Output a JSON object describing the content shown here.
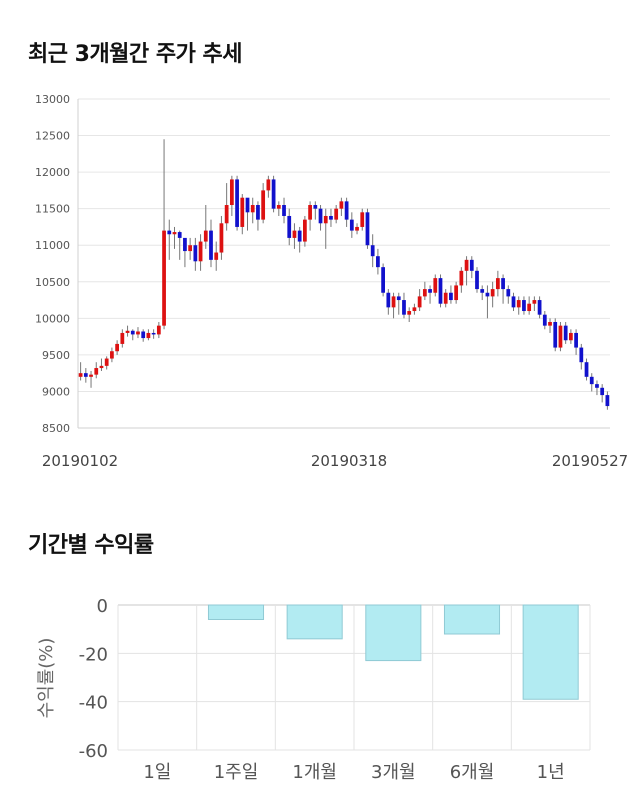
{
  "sections": {
    "price_title": "최근 3개월간 주가 추세",
    "return_title": "기간별 수익률"
  },
  "chart_data": [
    {
      "type": "candlestick",
      "title": "최근 3개월간 주가 추세",
      "ylim": [
        8500,
        13000
      ],
      "yticks": [
        8500,
        9000,
        9500,
        10000,
        10500,
        11000,
        11500,
        12000,
        12500,
        13000
      ],
      "xticks": [
        "20190102",
        "20190318",
        "20190527"
      ],
      "grid": true,
      "colors": {
        "up": "#dd1111",
        "down": "#1111cc",
        "wick": "#777777"
      },
      "candles": [
        [
          9200,
          9250,
          9400,
          9150
        ],
        [
          9250,
          9200,
          9320,
          9120
        ],
        [
          9200,
          9230,
          9280,
          9050
        ],
        [
          9230,
          9320,
          9400,
          9180
        ],
        [
          9320,
          9350,
          9450,
          9280
        ],
        [
          9350,
          9450,
          9480,
          9300
        ],
        [
          9450,
          9550,
          9600,
          9400
        ],
        [
          9550,
          9650,
          9700,
          9500
        ],
        [
          9650,
          9800,
          9850,
          9600
        ],
        [
          9800,
          9830,
          9900,
          9750
        ],
        [
          9830,
          9780,
          9850,
          9700
        ],
        [
          9780,
          9820,
          9880,
          9730
        ],
        [
          9820,
          9730,
          9850,
          9680
        ],
        [
          9730,
          9800,
          9850,
          9700
        ],
        [
          9800,
          9780,
          9850,
          9720
        ],
        [
          9780,
          9900,
          9950,
          9730
        ],
        [
          9900,
          11200,
          12450,
          9850
        ],
        [
          11200,
          11150,
          11350,
          10800
        ],
        [
          11150,
          11180,
          11250,
          10950
        ],
        [
          11180,
          11100,
          11200,
          10800
        ],
        [
          11100,
          10920,
          11050,
          10700
        ],
        [
          10920,
          11000,
          11100,
          10800
        ],
        [
          11000,
          10780,
          11100,
          10650
        ],
        [
          10780,
          11050,
          11150,
          10650
        ],
        [
          11050,
          11200,
          11550,
          10950
        ],
        [
          11200,
          10800,
          11350,
          10700
        ],
        [
          10800,
          10900,
          11050,
          10650
        ],
        [
          10900,
          11300,
          11400,
          10800
        ],
        [
          11300,
          11550,
          11850,
          11200
        ],
        [
          11550,
          11900,
          11950,
          11400
        ],
        [
          11900,
          11250,
          11950,
          11200
        ],
        [
          11250,
          11650,
          11700,
          11150
        ],
        [
          11650,
          11450,
          11600,
          11200
        ],
        [
          11450,
          11550,
          11650,
          11300
        ],
        [
          11550,
          11350,
          11600,
          11200
        ],
        [
          11350,
          11750,
          11850,
          11300
        ],
        [
          11750,
          11900,
          11950,
          11650
        ],
        [
          11900,
          11500,
          11950,
          11450
        ],
        [
          11500,
          11550,
          11600,
          11400
        ],
        [
          11550,
          11400,
          11650,
          11300
        ],
        [
          11400,
          11100,
          11500,
          11000
        ],
        [
          11100,
          11200,
          11300,
          10950
        ],
        [
          11200,
          11050,
          11250,
          10900
        ],
        [
          11050,
          11350,
          11400,
          10980
        ],
        [
          11350,
          11550,
          11600,
          11200
        ],
        [
          11550,
          11500,
          11600,
          11350
        ],
        [
          11500,
          11300,
          11550,
          11200
        ],
        [
          11300,
          11400,
          11500,
          10950
        ],
        [
          11400,
          11350,
          11500,
          11250
        ],
        [
          11350,
          11500,
          11550,
          11300
        ],
        [
          11500,
          11600,
          11650,
          11400
        ],
        [
          11600,
          11350,
          11650,
          11250
        ],
        [
          11350,
          11200,
          11450,
          11100
        ],
        [
          11200,
          11250,
          11300,
          11150
        ],
        [
          11250,
          11450,
          11500,
          11200
        ],
        [
          11450,
          11000,
          11500,
          10950
        ],
        [
          11000,
          10850,
          11150,
          10700
        ],
        [
          10850,
          10700,
          10950,
          10600
        ],
        [
          10700,
          10350,
          10750,
          10300
        ],
        [
          10350,
          10150,
          10400,
          10050
        ],
        [
          10150,
          10300,
          10350,
          10000
        ],
        [
          10300,
          10250,
          10350,
          10050
        ],
        [
          10250,
          10050,
          10350,
          10000
        ],
        [
          10050,
          10100,
          10150,
          9950
        ],
        [
          10100,
          10150,
          10200,
          10050
        ],
        [
          10150,
          10300,
          10400,
          10100
        ],
        [
          10300,
          10400,
          10500,
          10250
        ],
        [
          10400,
          10350,
          10450,
          10200
        ],
        [
          10350,
          10550,
          10600,
          10300
        ],
        [
          10550,
          10200,
          10600,
          10150
        ],
        [
          10200,
          10350,
          10400,
          10150
        ],
        [
          10350,
          10250,
          10450,
          10200
        ],
        [
          10250,
          10450,
          10500,
          10200
        ],
        [
          10450,
          10650,
          10700,
          10350
        ],
        [
          10650,
          10800,
          10850,
          10450
        ],
        [
          10800,
          10650,
          10850,
          10550
        ],
        [
          10650,
          10400,
          10700,
          10350
        ],
        [
          10400,
          10350,
          10450,
          10250
        ],
        [
          10350,
          10300,
          10450,
          10000
        ],
        [
          10300,
          10400,
          10500,
          10150
        ],
        [
          10400,
          10550,
          10650,
          10300
        ],
        [
          10550,
          10400,
          10600,
          10200
        ],
        [
          10400,
          10300,
          10450,
          10200
        ],
        [
          10300,
          10150,
          10350,
          10100
        ],
        [
          10150,
          10250,
          10300,
          10050
        ],
        [
          10250,
          10100,
          10300,
          10050
        ],
        [
          10100,
          10200,
          10300,
          10050
        ],
        [
          10200,
          10250,
          10300,
          10100
        ],
        [
          10250,
          10050,
          10300,
          10000
        ],
        [
          10050,
          9900,
          10100,
          9850
        ],
        [
          9900,
          9950,
          10000,
          9800
        ],
        [
          9950,
          9600,
          10000,
          9550
        ],
        [
          9600,
          9900,
          9950,
          9550
        ],
        [
          9900,
          9700,
          9950,
          9650
        ],
        [
          9700,
          9800,
          9850,
          9650
        ],
        [
          9800,
          9600,
          9850,
          9500
        ],
        [
          9600,
          9400,
          9650,
          9300
        ],
        [
          9400,
          9200,
          9450,
          9150
        ],
        [
          9200,
          9100,
          9250,
          9000
        ],
        [
          9100,
          9050,
          9150,
          8950
        ],
        [
          9050,
          8950,
          9100,
          8850
        ],
        [
          8950,
          8800,
          9000,
          8750
        ]
      ]
    },
    {
      "type": "bar",
      "title": "기간별 수익률",
      "categories": [
        "1일",
        "1주일",
        "1개월",
        "3개월",
        "6개월",
        "1년"
      ],
      "values": [
        0,
        -6,
        -14,
        -23,
        -12,
        -39
      ],
      "ylabel": "수익률(%)",
      "ylim": [
        -60,
        0
      ],
      "yticks": [
        0,
        -20,
        -40,
        -60
      ],
      "grid": true,
      "colors": {
        "fill": "#b2ebf2",
        "stroke": "#90cad4"
      }
    }
  ]
}
